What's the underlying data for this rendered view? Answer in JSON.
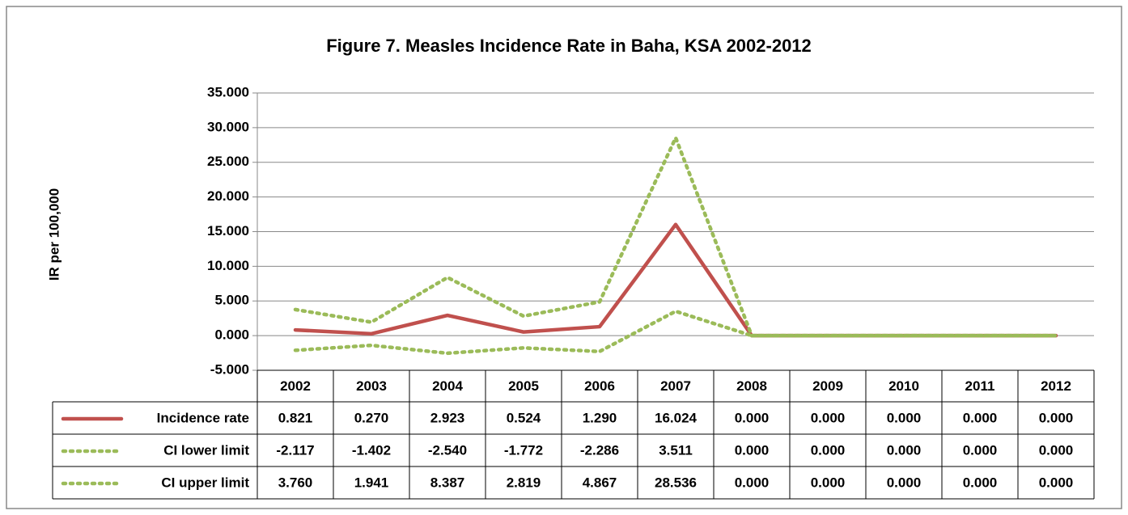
{
  "chart_data": {
    "type": "line",
    "title": "Figure 7. Measles Incidence Rate in Baha, KSA 2002-2012",
    "y_label": "IR per 100,000",
    "categories": [
      "2002",
      "2003",
      "2004",
      "2005",
      "2006",
      "2007",
      "2008",
      "2009",
      "2010",
      "2011",
      "2012"
    ],
    "series": [
      {
        "name": "Incidence rate",
        "color": "#c0504d",
        "line_style": "solid",
        "values": [
          0.821,
          0.27,
          2.923,
          0.524,
          1.29,
          16.024,
          0,
          0,
          0,
          0,
          0
        ],
        "value_labels": [
          "0.821",
          "0.270",
          "2.923",
          "0.524",
          "1.290",
          "16.024",
          "0.000",
          "0.000",
          "0.000",
          "0.000",
          "0.000"
        ]
      },
      {
        "name": "CI lower limit",
        "color": "#9bbb59",
        "line_style": "dotted",
        "values": [
          -2.117,
          -1.402,
          -2.54,
          -1.772,
          -2.286,
          3.511,
          0,
          0,
          0,
          0,
          0
        ],
        "value_labels": [
          "-2.117",
          "-1.402",
          "-2.540",
          "-1.772",
          "-2.286",
          "3.511",
          "0.000",
          "0.000",
          "0.000",
          "0.000",
          "0.000"
        ]
      },
      {
        "name": "CI upper limit",
        "color": "#9bbb59",
        "line_style": "dotted",
        "values": [
          3.76,
          1.941,
          8.387,
          2.819,
          4.867,
          28.536,
          0,
          0,
          0,
          0,
          0
        ],
        "value_labels": [
          "3.760",
          "1.941",
          "8.387",
          "2.819",
          "4.867",
          "28.536",
          "0.000",
          "0.000",
          "0.000",
          "0.000",
          "0.000"
        ]
      }
    ],
    "ylim": [
      -5,
      35
    ],
    "yticks": [
      {
        "value": -5,
        "label": "-5.000"
      },
      {
        "value": 0,
        "label": "0.000"
      },
      {
        "value": 5,
        "label": "5.000"
      },
      {
        "value": 10,
        "label": "10.000"
      },
      {
        "value": 15,
        "label": "15.000"
      },
      {
        "value": 20,
        "label": "20.000"
      },
      {
        "value": 25,
        "label": "25.000"
      },
      {
        "value": 30,
        "label": "30.000"
      },
      {
        "value": 35,
        "label": "35.000"
      }
    ],
    "grid": true,
    "data_table": true
  }
}
